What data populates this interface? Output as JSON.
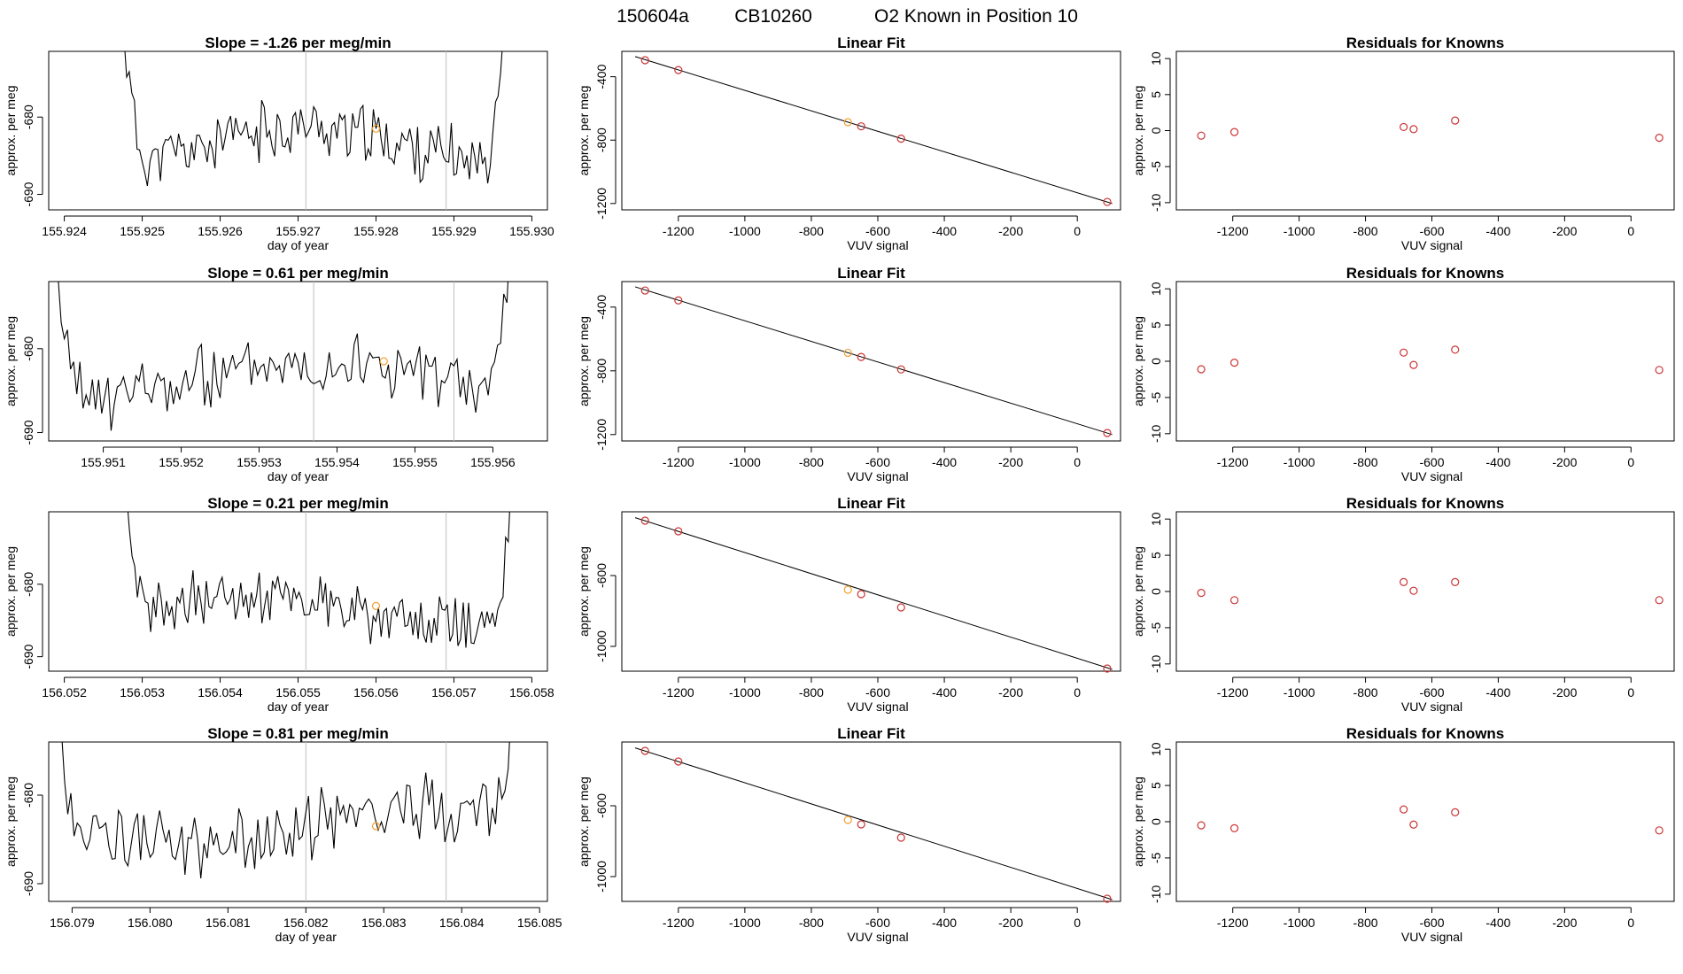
{
  "suptitle": {
    "run": "150604a",
    "tank": "CB10260",
    "desc": "O2 Known in Position  10"
  },
  "colors": {
    "line": "#000000",
    "point": "#cd3333",
    "highlight": "#f0a030",
    "vline": "#bebebe"
  },
  "labels": {
    "slope_prefix": "Slope =",
    "slope_suffix": "per meg/min",
    "time_xlabel": "day of year",
    "ylabel": "approx. per meg",
    "fit_title": "Linear Fit",
    "fit_xlabel": "VUV signal",
    "resid_title": "Residuals for Knowns"
  },
  "chart_data": [
    {
      "row": 1,
      "slope": "-1.26",
      "time": {
        "type": "line",
        "xlim": [
          155.9238,
          155.9302
        ],
        "ylim": [
          -692.0,
          -671.5
        ],
        "xticks": [
          "155.924",
          "155.925",
          "155.926",
          "155.927",
          "155.928",
          "155.929",
          "155.930"
        ],
        "yticks": [
          "-690",
          "-680"
        ],
        "vlines": [
          155.9271,
          155.9289
        ],
        "marker": [
          155.928,
          -681.5
        ],
        "series_start": 155.9247,
        "series_end": 155.9297,
        "seed": 11
      },
      "fit": {
        "type": "scatter",
        "xlim": [
          -1370,
          130
        ],
        "ylim": [
          -1240,
          -240
        ],
        "xticks": [
          "-1200",
          "-1000",
          "-800",
          "-600",
          "-400",
          "-200",
          "0"
        ],
        "yticks": [
          "-400",
          "-800",
          "-1200"
        ],
        "line": [
          [
            -1330,
            -273
          ],
          [
            105,
            -1200
          ]
        ],
        "points": [
          [
            -1300,
            -296,
            0
          ],
          [
            -1200,
            -358,
            0
          ],
          [
            -690,
            -687,
            1
          ],
          [
            -650,
            -713,
            0
          ],
          [
            -530,
            -791,
            0
          ],
          [
            90,
            -1190,
            0
          ]
        ]
      },
      "resid": {
        "type": "scatter",
        "xlim": [
          -1370,
          130
        ],
        "ylim": [
          -11,
          11
        ],
        "xticks": [
          "-1200",
          "-1000",
          "-800",
          "-600",
          "-400",
          "-200",
          "0"
        ],
        "yticks": [
          "10",
          "5",
          "0",
          "-5",
          "-10"
        ],
        "points": [
          [
            -1295,
            -0.7
          ],
          [
            -1195,
            -0.2
          ],
          [
            -685,
            0.5
          ],
          [
            -655,
            0.2
          ],
          [
            -530,
            1.4
          ],
          [
            85,
            -1.0
          ]
        ]
      }
    },
    {
      "row": 2,
      "slope": "0.61",
      "time": {
        "type": "line",
        "xlim": [
          155.9503,
          155.9567
        ],
        "ylim": [
          -691.0,
          -672.0
        ],
        "xticks": [
          "155.951",
          "155.952",
          "155.953",
          "155.954",
          "155.955",
          "155.956"
        ],
        "yticks": [
          "-690",
          "-680"
        ],
        "vlines": [
          155.9537,
          155.9555
        ],
        "marker": [
          155.9546,
          -681.5
        ],
        "series_start": 155.9503,
        "series_end": 155.9563,
        "seed": 23
      },
      "fit": {
        "type": "scatter",
        "xlim": [
          -1370,
          130
        ],
        "ylim": [
          -1240,
          -240
        ],
        "xticks": [
          "-1200",
          "-1000",
          "-800",
          "-600",
          "-400",
          "-200",
          "0"
        ],
        "yticks": [
          "-400",
          "-800",
          "-1200"
        ],
        "line": [
          [
            -1330,
            -273
          ],
          [
            105,
            -1200
          ]
        ],
        "points": [
          [
            -1300,
            -296,
            0
          ],
          [
            -1200,
            -358,
            0
          ],
          [
            -690,
            -687,
            1
          ],
          [
            -650,
            -713,
            0
          ],
          [
            -530,
            -791,
            0
          ],
          [
            90,
            -1190,
            0
          ]
        ]
      },
      "resid": {
        "type": "scatter",
        "xlim": [
          -1370,
          130
        ],
        "ylim": [
          -11,
          11
        ],
        "xticks": [
          "-1200",
          "-1000",
          "-800",
          "-600",
          "-400",
          "-200",
          "0"
        ],
        "yticks": [
          "10",
          "5",
          "0",
          "-5",
          "-10"
        ],
        "points": [
          [
            -1295,
            -1.1
          ],
          [
            -1195,
            -0.2
          ],
          [
            -685,
            1.2
          ],
          [
            -655,
            -0.5
          ],
          [
            -530,
            1.6
          ],
          [
            85,
            -1.2
          ]
        ]
      }
    },
    {
      "row": 3,
      "slope": "0.21",
      "time": {
        "type": "line",
        "xlim": [
          156.0518,
          156.0582
        ],
        "ylim": [
          -692.0,
          -670.0
        ],
        "xticks": [
          "156.052",
          "156.053",
          "156.054",
          "156.055",
          "156.056",
          "156.057",
          "156.058"
        ],
        "yticks": [
          "-690",
          "-680"
        ],
        "vlines": [
          156.0551,
          156.0569
        ],
        "marker": [
          156.056,
          -683.0
        ],
        "series_start": 156.0527,
        "series_end": 156.0578,
        "seed": 37
      },
      "fit": {
        "type": "scatter",
        "xlim": [
          -1370,
          130
        ],
        "ylim": [
          -1140,
          -240
        ],
        "xticks": [
          "-1200",
          "-1000",
          "-800",
          "-600",
          "-400",
          "-200",
          "0"
        ],
        "yticks": [
          "-600",
          "-1000"
        ],
        "line": [
          [
            -1330,
            -273
          ],
          [
            105,
            -1130
          ]
        ],
        "points": [
          [
            -1300,
            -290,
            0
          ],
          [
            -1200,
            -350,
            0
          ],
          [
            -690,
            -680,
            1
          ],
          [
            -650,
            -705,
            0
          ],
          [
            -530,
            -780,
            0
          ],
          [
            90,
            -1125,
            0
          ]
        ]
      },
      "resid": {
        "type": "scatter",
        "xlim": [
          -1370,
          130
        ],
        "ylim": [
          -11,
          11
        ],
        "xticks": [
          "-1200",
          "-1000",
          "-800",
          "-600",
          "-400",
          "-200",
          "0"
        ],
        "yticks": [
          "10",
          "5",
          "0",
          "-5",
          "-10"
        ],
        "points": [
          [
            -1295,
            -0.2
          ],
          [
            -1195,
            -1.2
          ],
          [
            -685,
            1.3
          ],
          [
            -655,
            0.1
          ],
          [
            -530,
            1.3
          ],
          [
            85,
            -1.2
          ]
        ]
      }
    },
    {
      "row": 4,
      "slope": "0.81",
      "time": {
        "type": "line",
        "xlim": [
          156.0787,
          156.0851
        ],
        "ylim": [
          -692.0,
          -674.0
        ],
        "xticks": [
          "156.079",
          "156.080",
          "156.081",
          "156.082",
          "156.083",
          "156.084",
          "156.085"
        ],
        "yticks": [
          "-690",
          "-680"
        ],
        "vlines": [
          156.082,
          156.0838
        ],
        "marker": [
          156.0829,
          -683.5
        ],
        "series_start": 156.0787,
        "series_end": 156.0848,
        "seed": 53
      },
      "fit": {
        "type": "scatter",
        "xlim": [
          -1370,
          130
        ],
        "ylim": [
          -1140,
          -240
        ],
        "xticks": [
          "-1200",
          "-1000",
          "-800",
          "-600",
          "-400",
          "-200",
          "0"
        ],
        "yticks": [
          "-600",
          "-1000"
        ],
        "line": [
          [
            -1330,
            -273
          ],
          [
            105,
            -1130
          ]
        ],
        "points": [
          [
            -1300,
            -290,
            0
          ],
          [
            -1200,
            -350,
            0
          ],
          [
            -690,
            -680,
            1
          ],
          [
            -650,
            -705,
            0
          ],
          [
            -530,
            -780,
            0
          ],
          [
            90,
            -1125,
            0
          ]
        ]
      },
      "resid": {
        "type": "scatter",
        "xlim": [
          -1370,
          130
        ],
        "ylim": [
          -11,
          11
        ],
        "xticks": [
          "-1200",
          "-1000",
          "-800",
          "-600",
          "-400",
          "-200",
          "0"
        ],
        "yticks": [
          "10",
          "5",
          "0",
          "-5",
          "-10"
        ],
        "points": [
          [
            -1295,
            -0.5
          ],
          [
            -1195,
            -0.9
          ],
          [
            -685,
            1.7
          ],
          [
            -655,
            -0.4
          ],
          [
            -530,
            1.3
          ],
          [
            85,
            -1.2
          ]
        ]
      }
    }
  ]
}
